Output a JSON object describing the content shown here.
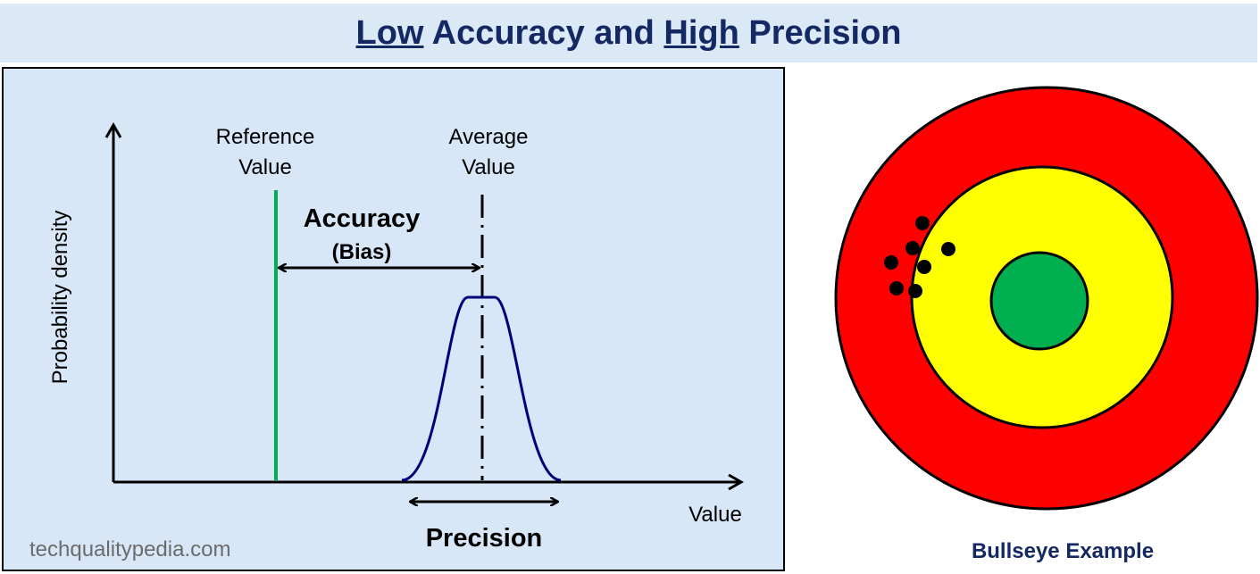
{
  "title": {
    "parts": [
      "Low",
      "Accuracy and",
      "High",
      "Precision"
    ]
  },
  "density_plot": {
    "y_axis_label": "Probability density",
    "x_axis_label": "Value",
    "reference_label": [
      "Reference",
      "Value"
    ],
    "average_label": [
      "Average",
      "Value"
    ],
    "accuracy_label": "Accuracy",
    "bias_label": "(Bias)",
    "precision_label": "Precision",
    "watermark": "techqualitypedia.com"
  },
  "bullseye": {
    "caption": "Bullseye Example"
  }
}
